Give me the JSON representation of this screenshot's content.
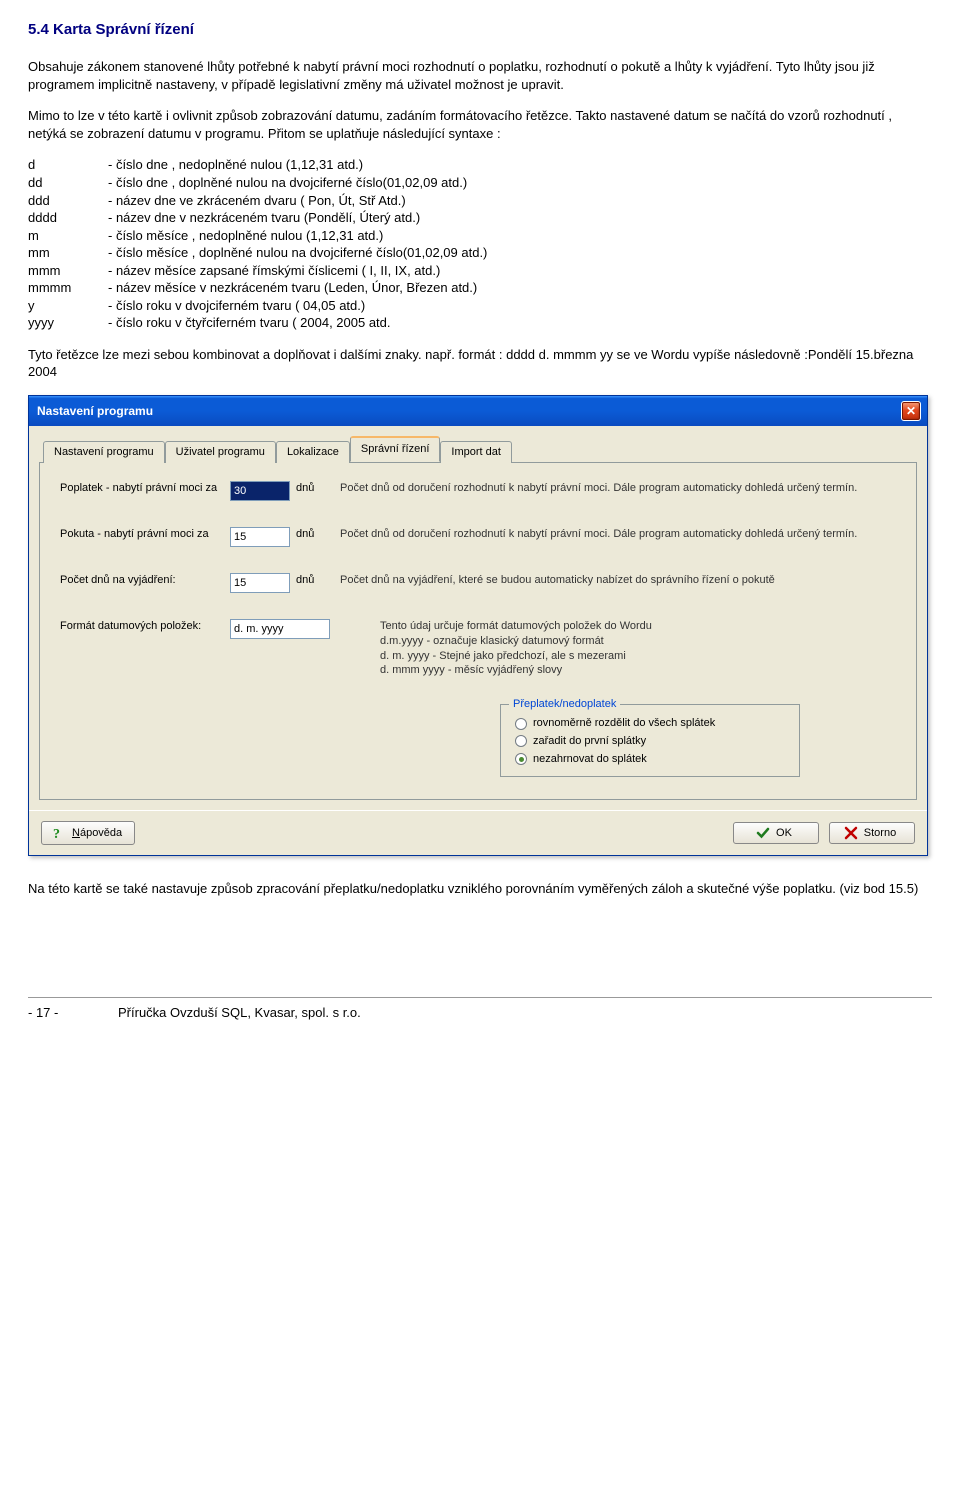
{
  "heading": "5.4 Karta Správní řízení",
  "para1": "Obsahuje zákonem stanovené lhůty potřebné k nabytí právní moci rozhodnutí o poplatku, rozhodnutí o pokutě a lhůty k vyjádření. Tyto lhůty jsou již programem implicitně nastaveny, v případě legislativní změny má uživatel možnost je upravit.",
  "para2": "Mimo to lze v této kartě i ovlivnit způsob zobrazování datumu, zadáním formátovacího řetězce. Takto nastavené datum se načítá do vzorů rozhodnutí , netýká se zobrazení datumu v programu. Přitom se uplatňuje následující syntaxe :",
  "syntax": [
    {
      "k": "d",
      "v": "- číslo dne , nedoplněné nulou (1,12,31 atd.)"
    },
    {
      "k": "dd",
      "v": "- číslo dne , doplněné nulou na dvojciferné číslo(01,02,09 atd.)"
    },
    {
      "k": "ddd",
      "v": "- název dne ve zkráceném dvaru ( Pon, Út, Stř Atd.)"
    },
    {
      "k": "dddd",
      "v": "- název dne v nezkráceném tvaru (Pondělí, Úterý atd.)"
    },
    {
      "k": "m",
      "v": "- číslo měsíce , nedoplněné nulou (1,12,31 atd.)"
    },
    {
      "k": "mm",
      "v": "- číslo měsíce , doplněné nulou na dvojciferné číslo(01,02,09 atd.)"
    },
    {
      "k": "mmm",
      "v": "- název měsíce zapsané římskými číslicemi  ( I, II, IX, atd.)"
    },
    {
      "k": "mmmm",
      "v": "- název měsíce v nezkráceném tvaru (Leden, Únor, Březen atd.)"
    },
    {
      "k": "y",
      "v": "- číslo roku v dvojciferném tvaru ( 04,05 atd.)"
    },
    {
      "k": "yyyy",
      "v": "- číslo roku v čtyřciferném tvaru ( 2004, 2005 atd."
    }
  ],
  "para3": "Tyto řetězce lze mezi sebou kombinovat a doplňovat i dalšími znaky. např. formát : dddd  d. mmmm yy  se ve Wordu vypíše následovně :Pondělí 15.března 2004",
  "dialog": {
    "title": "Nastavení programu",
    "tabs": [
      "Nastavení programu",
      "Uživatel programu",
      "Lokalizace",
      "Správní řízení",
      "Import dat"
    ],
    "active_tab_index": 3,
    "rows": [
      {
        "label": "Poplatek - nabytí právní moci za",
        "value": "30",
        "unit": "dnů",
        "highlight": true,
        "desc": "Počet dnů od doručení rozhodnutí k nabytí právní moci. Dále program automaticky dohledá určený termín."
      },
      {
        "label": "Pokuta - nabytí právní moci za",
        "value": "15",
        "unit": "dnů",
        "highlight": false,
        "desc": "Počet dnů od doručení rozhodnutí k nabytí právní moci. Dále program automaticky dohledá určený termín."
      },
      {
        "label": "Počet dnů na vyjádření:",
        "value": "15",
        "unit": "dnů",
        "highlight": false,
        "desc": "Počet dnů na vyjádření, které se budou automaticky nabízet do správního řízení o pokutě"
      },
      {
        "label": "Formát datumových položek:",
        "value": "d. m. yyyy",
        "unit": "",
        "highlight": false,
        "wide": true,
        "desc": "Tento údaj určuje formát datumových položek do Wordu\nd.m.yyyy - označuje klasický datumový formát\nd. m. yyyy - Stejné jako předchozí, ale s mezerami\nd. mmm yyyy - měsíc vyjádřený slovy"
      }
    ],
    "fieldset": {
      "legend": "Přeplatek/nedoplatek",
      "options": [
        {
          "label": "rovnoměrně rozdělit do všech splátek",
          "checked": false
        },
        {
          "label": "zařadit do první splátky",
          "checked": false
        },
        {
          "label": "nezahrnovat do splátek",
          "checked": true
        }
      ]
    },
    "buttons": {
      "help": "Nápověda",
      "ok": "OK",
      "cancel": "Storno"
    }
  },
  "para4": "Na této kartě se také nastavuje způsob zpracování přeplatku/nedoplatku vzniklého porovnáním vyměřených záloh a skutečné výše poplatku. (viz bod 15.5)",
  "footer": {
    "page": "- 17 -",
    "text": "Příručka Ovzduší SQL,  Kvasar, spol. s r.o."
  },
  "colors": {
    "heading": "#000080"
  }
}
